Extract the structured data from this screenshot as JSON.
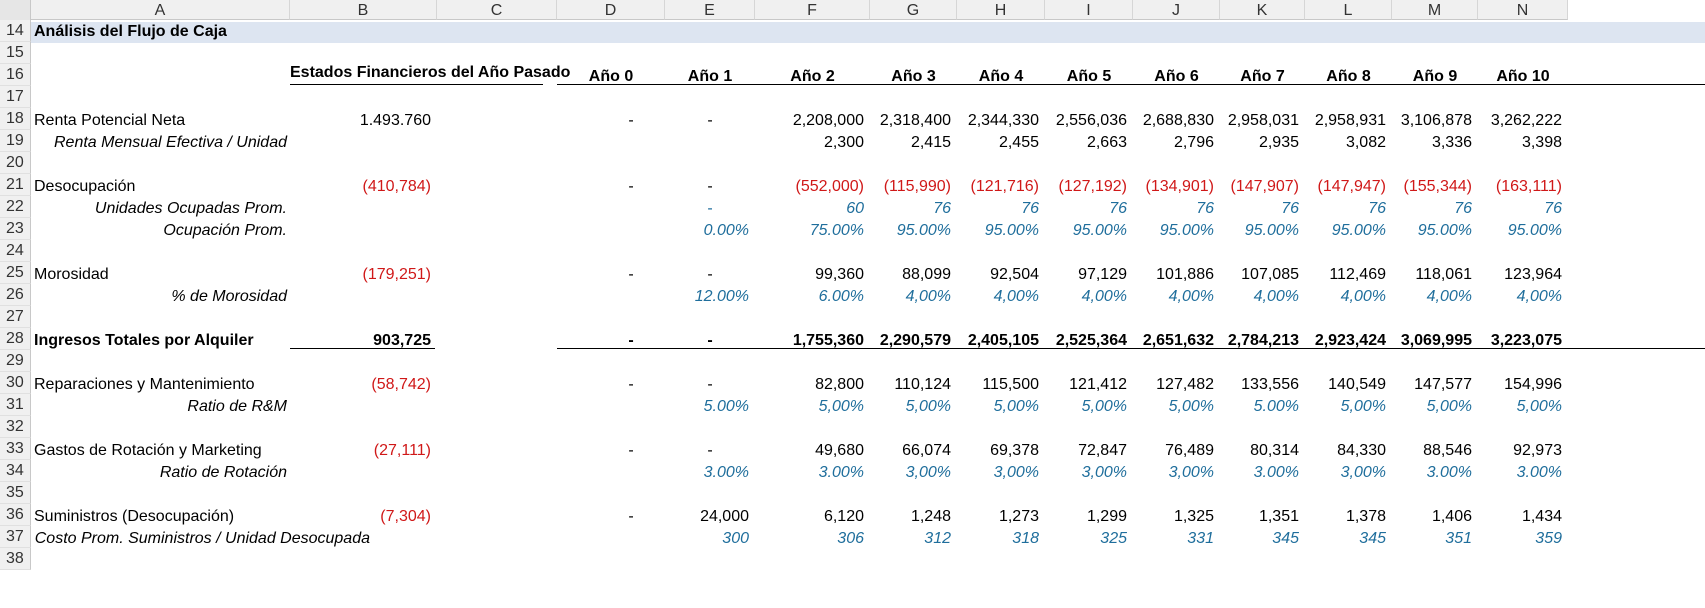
{
  "sheet": {
    "columns": [
      "A",
      "B",
      "C",
      "D",
      "E",
      "F",
      "G",
      "H",
      "I",
      "J",
      "K",
      "L",
      "M",
      "N"
    ],
    "title": "Análisis del Flujo de Caja",
    "header_row": {
      "prior_year": "Estados Financieros del Año Pasado",
      "years": [
        "Año 0",
        "Año 1",
        "Año 2",
        "Año 3",
        "Año 4",
        "Año 5",
        "Año 6",
        "Año 7",
        "Año 8",
        "Año 9",
        "Año 10"
      ]
    },
    "rows": [
      {
        "num": "14"
      },
      {
        "num": "15"
      },
      {
        "num": "16"
      },
      {
        "num": "17"
      },
      {
        "num": "18",
        "label": "Renta Potencial Neta",
        "b": "1.493.760",
        "vals": [
          "-",
          "-",
          "2,208,000",
          "2,318,400",
          "2,344,330",
          "2,556,036",
          "2,688,830",
          "2,958,031",
          "2,958,931",
          "3,106,878",
          "3,262,222"
        ]
      },
      {
        "num": "19",
        "label": "Renta Mensual Efectiva / Unidad",
        "vals": [
          "",
          "",
          "2,300",
          "2,415",
          "2,455",
          "2,663",
          "2,796",
          "2,935",
          "3,082",
          "3,336",
          "3,398"
        ]
      },
      {
        "num": "20"
      },
      {
        "num": "21",
        "label": "Desocupación",
        "b": "(410,784)",
        "vals": [
          "-",
          "-",
          "(552,000)",
          "(115,990)",
          "(121,716)",
          "(127,192)",
          "(134,901)",
          "(147,907)",
          "(147,947)",
          "(155,344)",
          "(163,111)"
        ]
      },
      {
        "num": "22",
        "label": "Unidades Ocupadas Prom.",
        "vals": [
          "",
          "-",
          "60",
          "76",
          "76",
          "76",
          "76",
          "76",
          "76",
          "76",
          "76"
        ]
      },
      {
        "num": "23",
        "label": "Ocupación Prom.",
        "vals": [
          "",
          "0.00%",
          "75.00%",
          "95.00%",
          "95.00%",
          "95.00%",
          "95.00%",
          "95.00%",
          "95.00%",
          "95.00%",
          "95.00%"
        ]
      },
      {
        "num": "24"
      },
      {
        "num": "25",
        "label": "Morosidad",
        "b": "(179,251)",
        "vals": [
          "-",
          "-",
          "99,360",
          "88,099",
          "92,504",
          "97,129",
          "101,886",
          "107,085",
          "112,469",
          "118,061",
          "123,964"
        ]
      },
      {
        "num": "26",
        "label": "% de Morosidad",
        "vals": [
          "",
          "12.00%",
          "6.00%",
          "4,00%",
          "4,00%",
          "4,00%",
          "4,00%",
          "4,00%",
          "4,00%",
          "4,00%",
          "4,00%"
        ]
      },
      {
        "num": "27"
      },
      {
        "num": "28",
        "label": "Ingresos Totales por Alquiler",
        "b": "903,725",
        "vals": [
          "-",
          "-",
          "1,755,360",
          "2,290,579",
          "2,405,105",
          "2,525,364",
          "2,651,632",
          "2,784,213",
          "2,923,424",
          "3,069,995",
          "3,223,075"
        ]
      },
      {
        "num": "29"
      },
      {
        "num": "30",
        "label": "Reparaciones y Mantenimiento",
        "b": "(58,742)",
        "vals": [
          "-",
          "-",
          "82,800",
          "110,124",
          "115,500",
          "121,412",
          "127,482",
          "133,556",
          "140,549",
          "147,577",
          "154,996"
        ]
      },
      {
        "num": "31",
        "label": "Ratio de R&M",
        "vals": [
          "",
          "5.00%",
          "5,00%",
          "5,00%",
          "5,00%",
          "5,00%",
          "5,00%",
          "5.00%",
          "5,00%",
          "5,00%",
          "5,00%"
        ]
      },
      {
        "num": "32"
      },
      {
        "num": "33",
        "label": "Gastos de Rotación y Marketing",
        "b": "(27,111)",
        "vals": [
          "-",
          "-",
          "49,680",
          "66,074",
          "69,378",
          "72,847",
          "76,489",
          "80,314",
          "84,330",
          "88,546",
          "92,973"
        ]
      },
      {
        "num": "34",
        "label": "Ratio de Rotación",
        "vals": [
          "",
          "3.00%",
          "3.00%",
          "3,00%",
          "3,00%",
          "3,00%",
          "3,00%",
          "3.00%",
          "3,00%",
          "3.00%",
          "3.00%"
        ]
      },
      {
        "num": "35"
      },
      {
        "num": "36",
        "label": "Suministros (Desocupación)",
        "b": "(7,304)",
        "vals": [
          "-",
          "24,000",
          "6,120",
          "1,248",
          "1,273",
          "1,299",
          "1,325",
          "1,351",
          "1,378",
          "1,406",
          "1,434"
        ]
      },
      {
        "num": "37",
        "label": "Costo Prom. Suministros / Unidad Desocupada",
        "vals": [
          "",
          "300",
          "306",
          "312",
          "318",
          "325",
          "331",
          "345",
          "345",
          "351",
          "359"
        ]
      },
      {
        "num": "38"
      }
    ]
  }
}
